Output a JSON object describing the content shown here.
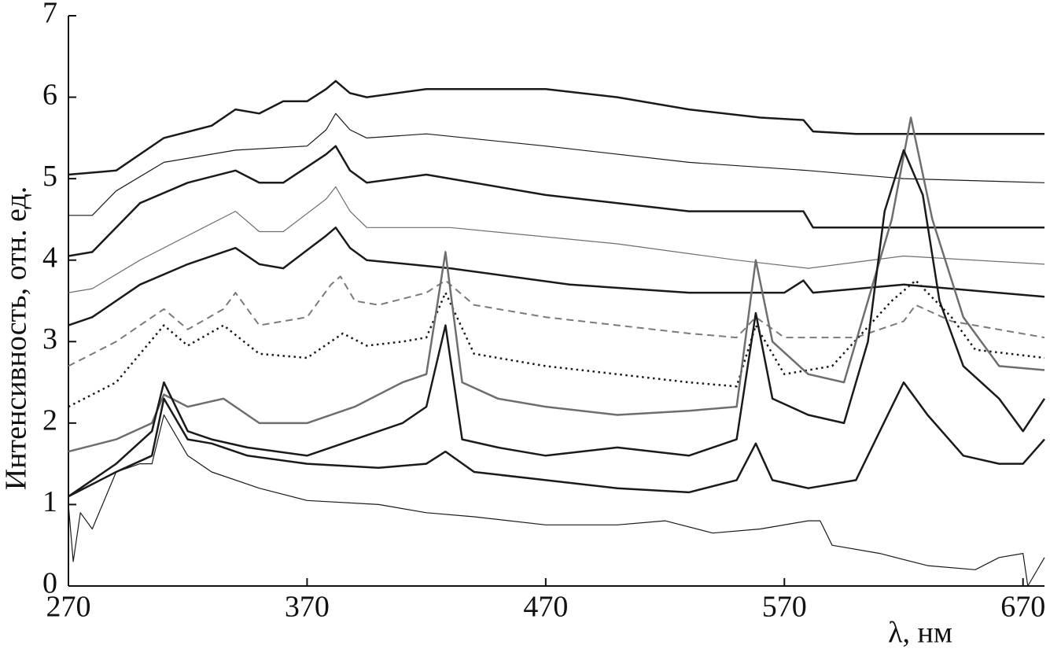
{
  "chart_data": {
    "type": "line",
    "x_label": "λ, нм",
    "y_label": "Интенсивность, отн. ед.",
    "xlim": [
      270,
      679
    ],
    "ylim": [
      0,
      7
    ],
    "xticks": [
      270,
      370,
      470,
      570,
      670
    ],
    "yticks": [
      0,
      1,
      2,
      3,
      4,
      5,
      6,
      7
    ],
    "grid": false,
    "series": [
      {
        "color": "#1a1a1a",
        "width": 2.5,
        "dash": "solid",
        "x": [
          270,
          290,
          310,
          330,
          340,
          350,
          360,
          370,
          378,
          382,
          388,
          395,
          420,
          470,
          500,
          530,
          560,
          578,
          582,
          600,
          679
        ],
        "values": [
          5.05,
          5.1,
          5.5,
          5.65,
          5.85,
          5.8,
          5.95,
          5.95,
          6.1,
          6.2,
          6.05,
          6.0,
          6.1,
          6.1,
          6.0,
          5.85,
          5.75,
          5.72,
          5.58,
          5.55,
          5.55
        ]
      },
      {
        "color": "#1a1a1a",
        "width": 1.2,
        "dash": "solid",
        "x": [
          270,
          280,
          290,
          310,
          340,
          370,
          378,
          382,
          388,
          395,
          420,
          470,
          530,
          580,
          620,
          679
        ],
        "values": [
          4.55,
          4.55,
          4.85,
          5.2,
          5.35,
          5.4,
          5.6,
          5.8,
          5.6,
          5.5,
          5.55,
          5.4,
          5.2,
          5.1,
          5.0,
          4.95
        ]
      },
      {
        "color": "#1a1a1a",
        "width": 2.5,
        "dash": "solid",
        "x": [
          270,
          280,
          300,
          320,
          340,
          350,
          360,
          378,
          382,
          388,
          395,
          420,
          470,
          530,
          578,
          582,
          679
        ],
        "values": [
          4.05,
          4.1,
          4.7,
          4.95,
          5.1,
          4.95,
          4.95,
          5.3,
          5.4,
          5.1,
          4.95,
          5.05,
          4.8,
          4.6,
          4.6,
          4.4,
          4.4
        ]
      },
      {
        "color": "#6e6e6e",
        "width": 1.2,
        "dash": "solid",
        "x": [
          270,
          280,
          300,
          320,
          340,
          350,
          360,
          378,
          382,
          388,
          395,
          430,
          500,
          550,
          580,
          620,
          679
        ],
        "values": [
          3.6,
          3.65,
          4.0,
          4.3,
          4.6,
          4.35,
          4.35,
          4.75,
          4.9,
          4.6,
          4.4,
          4.4,
          4.2,
          4.0,
          3.9,
          4.05,
          3.95
        ]
      },
      {
        "color": "#1a1a1a",
        "width": 2.5,
        "dash": "solid",
        "x": [
          270,
          280,
          300,
          320,
          340,
          350,
          360,
          378,
          382,
          388,
          395,
          430,
          480,
          530,
          570,
          578,
          582,
          620,
          679
        ],
        "values": [
          3.2,
          3.3,
          3.7,
          3.95,
          4.15,
          3.95,
          3.9,
          4.3,
          4.4,
          4.15,
          4.0,
          3.9,
          3.7,
          3.6,
          3.6,
          3.75,
          3.6,
          3.7,
          3.55
        ]
      },
      {
        "color": "#7a7a7a",
        "width": 2,
        "dash": "dashed",
        "x": [
          270,
          290,
          310,
          320,
          335,
          340,
          350,
          370,
          380,
          384,
          390,
          400,
          420,
          428,
          440,
          470,
          530,
          550,
          558,
          570,
          600,
          620,
          625,
          640,
          679
        ],
        "values": [
          2.7,
          3.0,
          3.4,
          3.15,
          3.4,
          3.6,
          3.2,
          3.3,
          3.7,
          3.8,
          3.5,
          3.45,
          3.6,
          3.75,
          3.45,
          3.3,
          3.1,
          3.05,
          3.3,
          3.05,
          3.05,
          3.25,
          3.45,
          3.25,
          3.05
        ]
      },
      {
        "color": "#1a1a1a",
        "width": 2.5,
        "dash": "dotted",
        "x": [
          270,
          290,
          310,
          320,
          335,
          350,
          370,
          385,
          395,
          410,
          420,
          428,
          440,
          470,
          530,
          550,
          558,
          570,
          590,
          615,
          625,
          640,
          650,
          679
        ],
        "values": [
          2.2,
          2.5,
          3.2,
          2.95,
          3.2,
          2.85,
          2.8,
          3.1,
          2.95,
          3.0,
          3.05,
          3.6,
          2.85,
          2.7,
          2.5,
          2.45,
          3.2,
          2.6,
          2.7,
          3.5,
          3.75,
          3.3,
          2.9,
          2.8
        ]
      },
      {
        "color": "#6e6e6e",
        "width": 2.5,
        "dash": "solid",
        "x": [
          270,
          290,
          305,
          310,
          320,
          335,
          350,
          370,
          390,
          410,
          420,
          428,
          435,
          450,
          470,
          500,
          530,
          550,
          558,
          565,
          580,
          595,
          605,
          615,
          623,
          632,
          645,
          660,
          679
        ],
        "values": [
          1.65,
          1.8,
          2.0,
          2.35,
          2.2,
          2.3,
          2.0,
          2.0,
          2.2,
          2.5,
          2.6,
          4.1,
          2.5,
          2.3,
          2.2,
          2.1,
          2.15,
          2.2,
          4.0,
          3.0,
          2.6,
          2.5,
          3.5,
          4.5,
          5.75,
          4.5,
          3.3,
          2.7,
          2.65
        ]
      },
      {
        "color": "#1a1a1a",
        "width": 2.5,
        "dash": "solid",
        "x": [
          270,
          290,
          305,
          310,
          320,
          330,
          345,
          370,
          390,
          410,
          420,
          428,
          435,
          450,
          470,
          500,
          530,
          550,
          558,
          565,
          580,
          595,
          605,
          612,
          620,
          628,
          635,
          645,
          660,
          670,
          679
        ],
        "values": [
          1.1,
          1.5,
          1.9,
          2.5,
          1.9,
          1.8,
          1.7,
          1.6,
          1.8,
          2.0,
          2.2,
          3.2,
          1.8,
          1.7,
          1.6,
          1.7,
          1.6,
          1.8,
          3.35,
          2.3,
          2.1,
          2.0,
          3.0,
          4.6,
          5.35,
          4.8,
          3.5,
          2.7,
          2.3,
          1.9,
          2.3
        ]
      },
      {
        "color": "#1a1a1a",
        "width": 2.5,
        "dash": "solid",
        "x": [
          270,
          290,
          305,
          310,
          320,
          330,
          345,
          370,
          400,
          420,
          428,
          440,
          470,
          500,
          530,
          550,
          558,
          565,
          580,
          600,
          615,
          620,
          630,
          645,
          660,
          670,
          679
        ],
        "values": [
          1.1,
          1.4,
          1.6,
          2.3,
          1.8,
          1.75,
          1.6,
          1.5,
          1.45,
          1.5,
          1.65,
          1.4,
          1.3,
          1.2,
          1.15,
          1.3,
          1.75,
          1.3,
          1.2,
          1.3,
          2.2,
          2.5,
          2.1,
          1.6,
          1.5,
          1.5,
          1.8
        ]
      },
      {
        "color": "#1a1a1a",
        "width": 1.2,
        "dash": "solid",
        "x": [
          270,
          272,
          275,
          280,
          290,
          300,
          305,
          310,
          320,
          330,
          350,
          370,
          400,
          420,
          440,
          470,
          500,
          520,
          540,
          560,
          580,
          585,
          590,
          610,
          630,
          650,
          660,
          670,
          672,
          679
        ],
        "values": [
          1.0,
          0.3,
          0.9,
          0.7,
          1.4,
          1.5,
          1.5,
          2.1,
          1.6,
          1.4,
          1.2,
          1.05,
          1.0,
          0.9,
          0.85,
          0.75,
          0.75,
          0.8,
          0.65,
          0.7,
          0.8,
          0.8,
          0.5,
          0.4,
          0.25,
          0.2,
          0.35,
          0.4,
          0.0,
          0.35
        ]
      }
    ]
  }
}
